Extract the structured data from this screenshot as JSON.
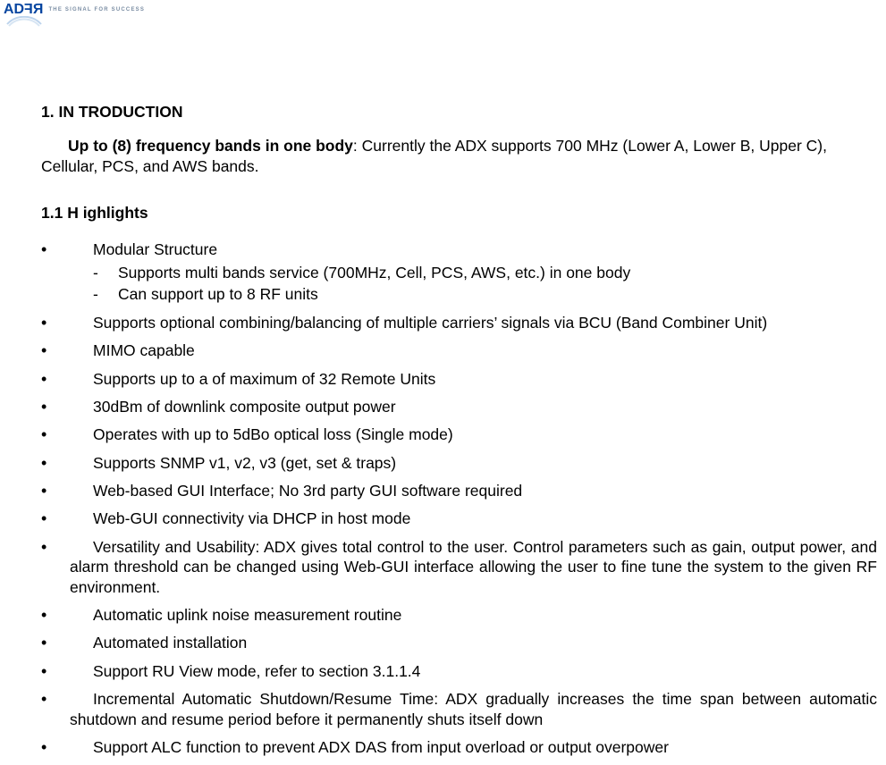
{
  "logo": {
    "part1": "AD",
    "part2": "RF",
    "tagline": "THE SIGNAL FOR SUCCESS"
  },
  "heading1": "1. IN   TRODUCTION",
  "intro": {
    "lead": "Up to (8) frequency bands in one body",
    "rest": ":  Currently the ADX supports 700 MHz (Lower A, Lower B, Upper C), Cellular, PCS, and AWS bands."
  },
  "heading2": "1.1 H ighlights",
  "bullets": [
    {
      "text": "Modular Structure",
      "sub": [
        "Supports multi bands service (700MHz, Cell, PCS, AWS, etc.) in one body",
        "Can support up to 8 RF units"
      ]
    },
    {
      "text": "Supports optional combining/balancing of multiple carriers’ signals via BCU (Band Combiner Unit)"
    },
    {
      "text": "MIMO capable"
    },
    {
      "text": "Supports up to a of maximum of 32 Remote Units"
    },
    {
      "text": "30dBm of downlink composite output power"
    },
    {
      "text": "Operates with up to 5dBo optical loss (Single mode)"
    },
    {
      "text": "Supports SNMP v1, v2, v3 (get, set & traps)"
    },
    {
      "text": "Web-based GUI Interface; No 3rd party GUI software required"
    },
    {
      "text": "Web-GUI connectivity via DHCP in host mode"
    },
    {
      "text": "Versatility and Usability: ADX gives total control to the user.  Control parameters such as gain, output power, and alarm threshold can be changed using Web-GUI interface allowing the user to fine tune the system to the given RF environment.",
      "justify": true
    },
    {
      "text": "Automatic uplink noise measurement routine"
    },
    {
      "text": "Automated installation"
    },
    {
      "text": "Support RU View mode, refer to section 3.1.1.4"
    },
    {
      "text": "Incremental Automatic Shutdown/Resume Time: ADX gradually increases the time span between automatic shutdown and resume period before it permanently shuts itself down",
      "justify": true
    },
    {
      "text": "Support ALC function to prevent ADX DAS from input overload or output overpower"
    }
  ]
}
